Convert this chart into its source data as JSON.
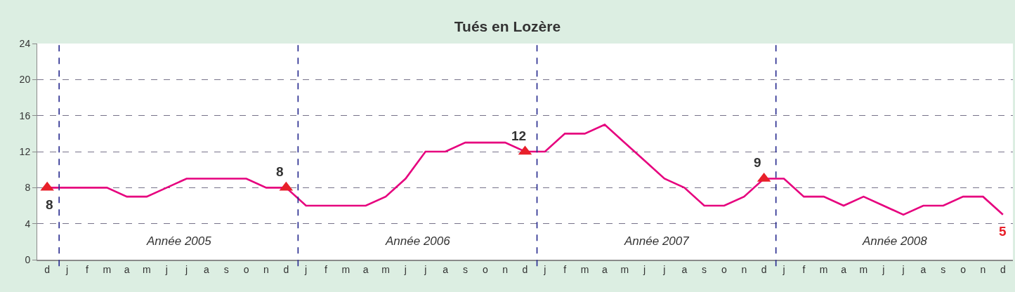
{
  "chart_data": {
    "type": "line",
    "title": "Tués en Lozère",
    "categories": [
      "d",
      "j",
      "f",
      "m",
      "a",
      "m",
      "j",
      "j",
      "a",
      "s",
      "o",
      "n",
      "d",
      "j",
      "f",
      "m",
      "a",
      "m",
      "j",
      "j",
      "a",
      "s",
      "o",
      "n",
      "d",
      "j",
      "f",
      "m",
      "a",
      "m",
      "j",
      "j",
      "a",
      "s",
      "o",
      "n",
      "d",
      "j",
      "f",
      "m",
      "a",
      "m",
      "j",
      "j",
      "a",
      "s",
      "o",
      "n",
      "d"
    ],
    "ylim": [
      0,
      24
    ],
    "yticks": [
      0,
      4,
      8,
      12,
      16,
      20,
      24
    ],
    "grid": "y",
    "series": [
      {
        "color": "#e6007e",
        "values": [
          8,
          8,
          8,
          8,
          7,
          7,
          8,
          9,
          9,
          9,
          9,
          8,
          8,
          6,
          6,
          6,
          6,
          7,
          9,
          12,
          12,
          13,
          13,
          13,
          12,
          12,
          14,
          14,
          15,
          13,
          11,
          9,
          8,
          6,
          6,
          7,
          9,
          9,
          7,
          7,
          6,
          7,
          6,
          5,
          6,
          6,
          7,
          7,
          5
        ],
        "value_labels": [
          "8",
          null,
          null,
          null,
          null,
          null,
          null,
          null,
          null,
          null,
          null,
          null,
          "8",
          null,
          null,
          null,
          null,
          null,
          null,
          null,
          null,
          null,
          null,
          null,
          "12",
          null,
          null,
          null,
          null,
          null,
          null,
          null,
          null,
          null,
          null,
          null,
          "9",
          null,
          null,
          null,
          null,
          null,
          null,
          null,
          null,
          null,
          null,
          null,
          "5"
        ]
      },
      {
        "type": "scatter",
        "marker": "triangle",
        "color": "#e8202a",
        "values": [
          8,
          null,
          null,
          null,
          null,
          null,
          null,
          null,
          null,
          null,
          null,
          null,
          8,
          null,
          null,
          null,
          null,
          null,
          null,
          null,
          null,
          null,
          null,
          null,
          12,
          null,
          null,
          null,
          null,
          null,
          null,
          null,
          null,
          null,
          null,
          null,
          9,
          null,
          null,
          null,
          null,
          null,
          null,
          null,
          null,
          null,
          null,
          null,
          null
        ]
      }
    ],
    "annotations": [
      "Année 2005",
      "Année 2006",
      "Année 2007",
      "Année 2008"
    ]
  }
}
